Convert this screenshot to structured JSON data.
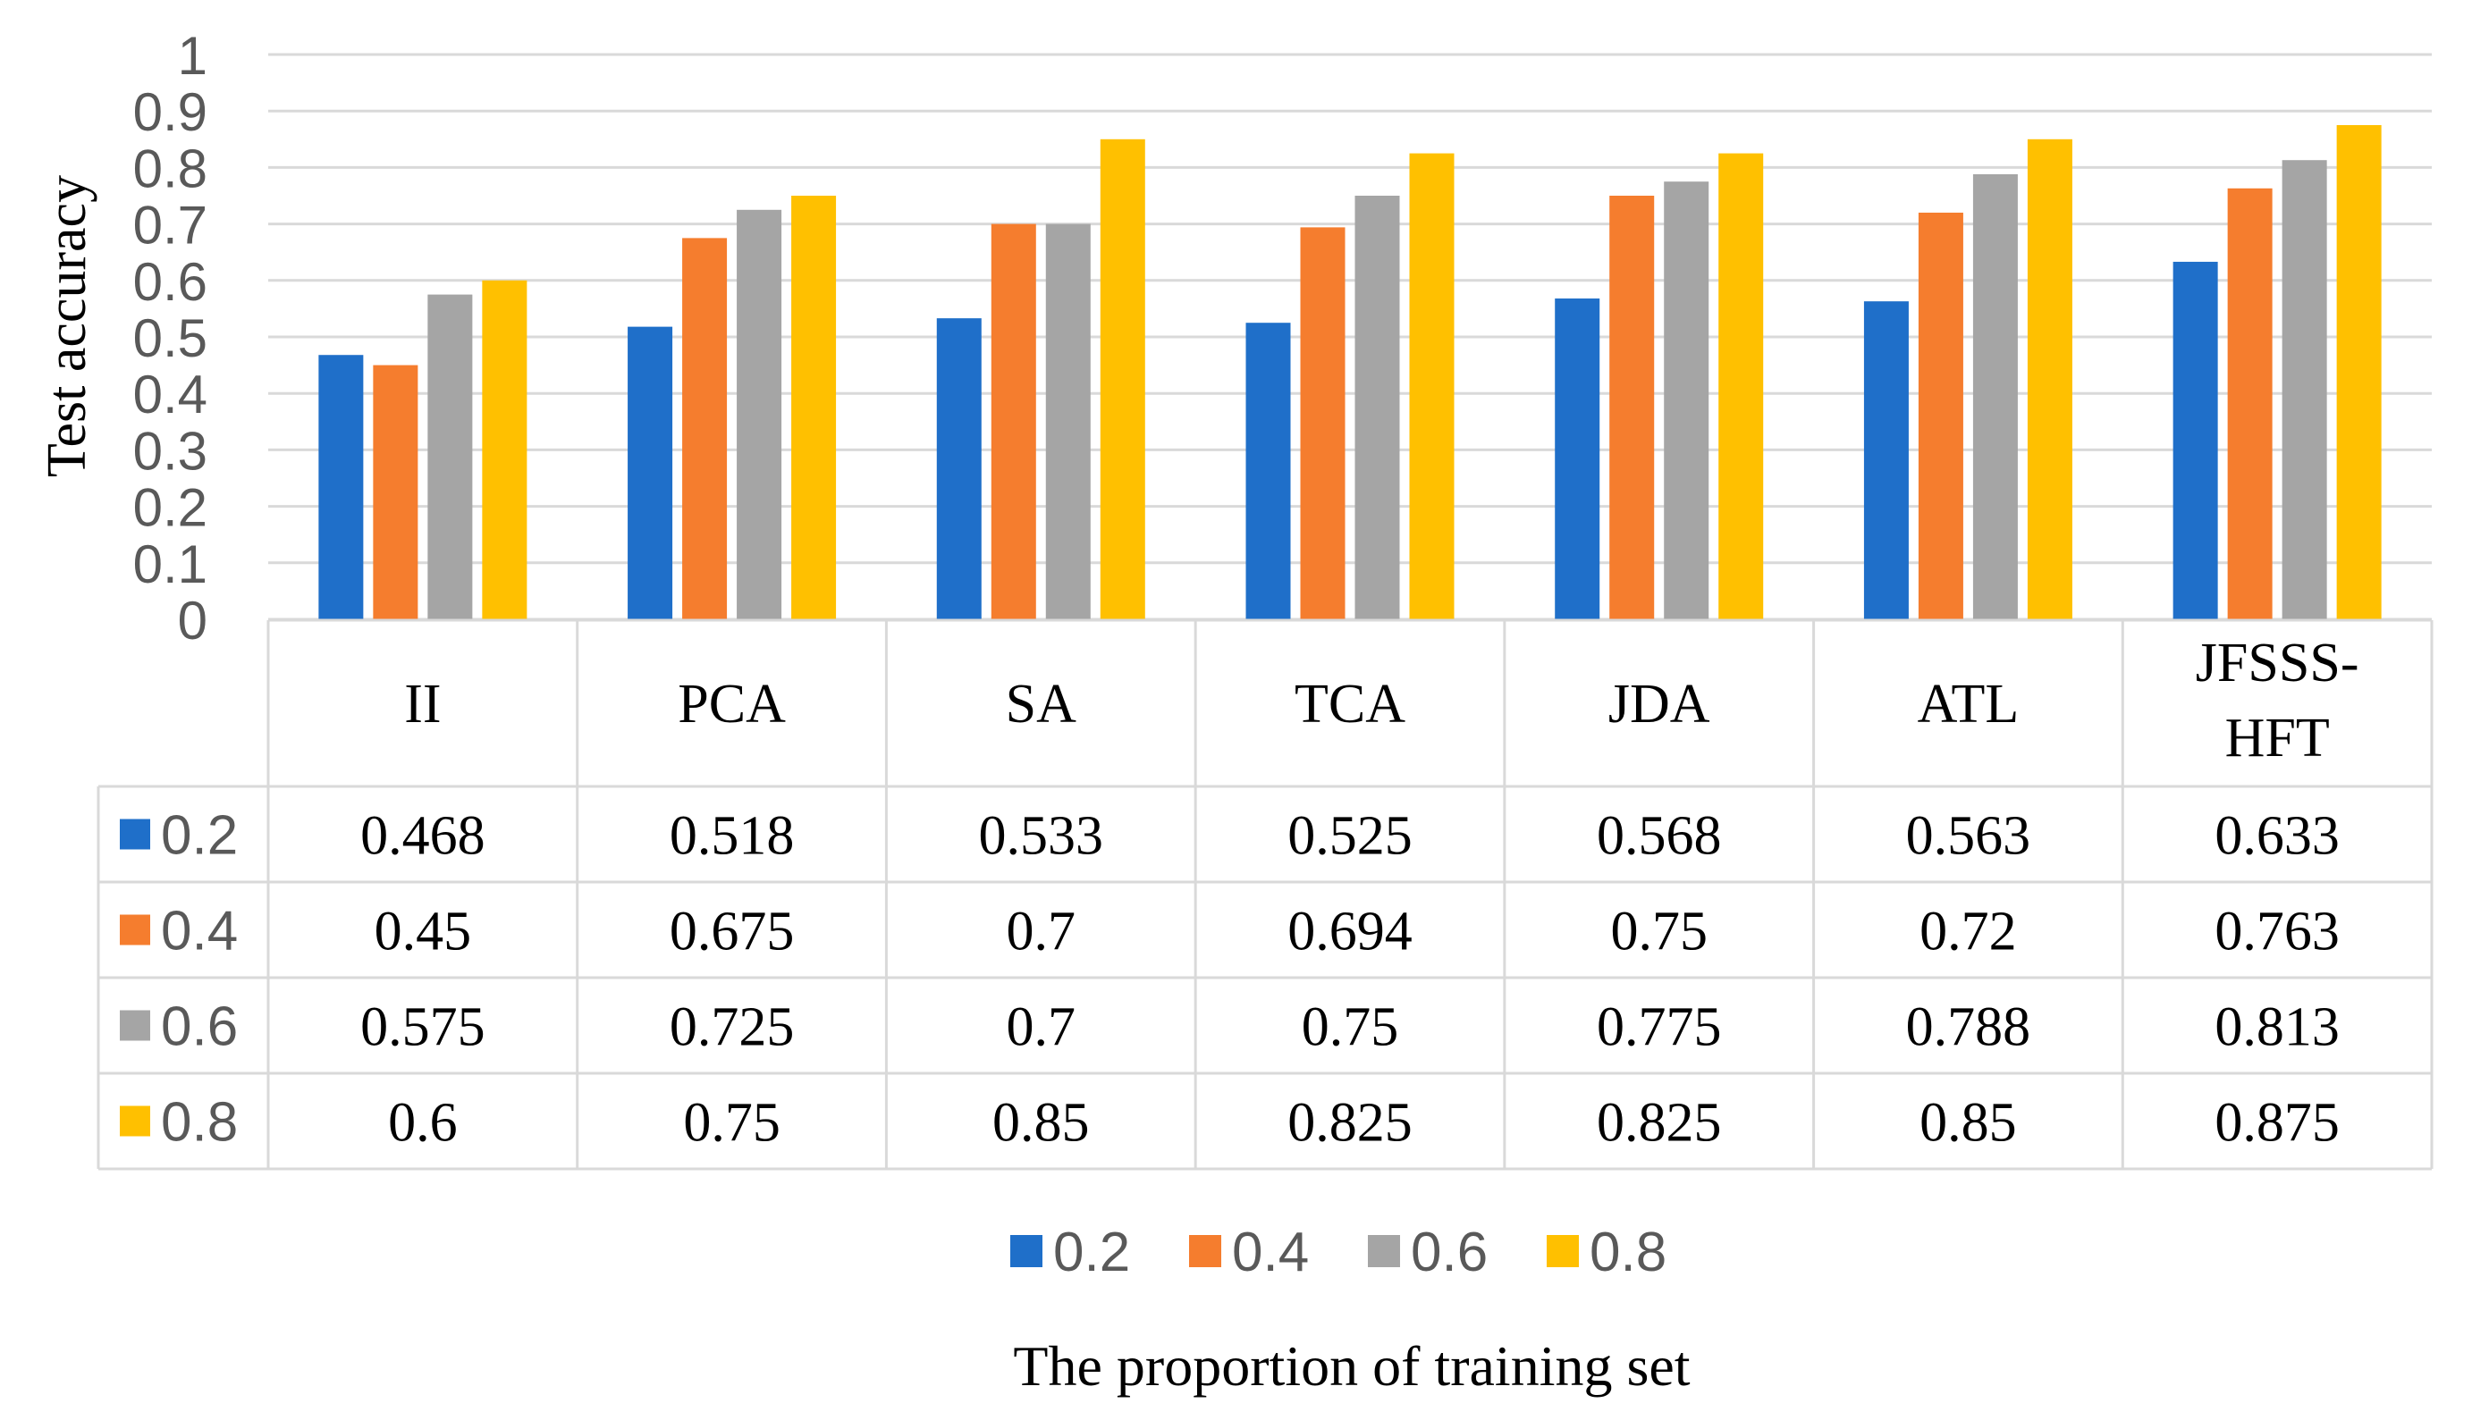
{
  "chart_data": {
    "type": "bar",
    "title": "",
    "xlabel": "The proportion of training set",
    "ylabel": "Test accuracy",
    "ylim": [
      0,
      1
    ],
    "yticks": [
      "0",
      "0.1",
      "0.2",
      "0.3",
      "0.4",
      "0.5",
      "0.6",
      "0.7",
      "0.8",
      "0.9",
      "1"
    ],
    "grid": true,
    "legend_position": "bottom",
    "data_table": true,
    "categories": [
      "II",
      "PCA",
      "SA",
      "TCA",
      "JDA",
      "ATL",
      "JFSSS-HFT"
    ],
    "series": [
      {
        "name": "0.2",
        "color": "#1F6FC9",
        "values": [
          0.468,
          0.518,
          0.533,
          0.525,
          0.568,
          0.563,
          0.633
        ],
        "labels": [
          "0.468",
          "0.518",
          "0.533",
          "0.525",
          "0.568",
          "0.563",
          "0.633"
        ]
      },
      {
        "name": "0.4",
        "color": "#F57D2E",
        "values": [
          0.45,
          0.675,
          0.7,
          0.694,
          0.75,
          0.72,
          0.763
        ],
        "labels": [
          "0.45",
          "0.675",
          "0.7",
          "0.694",
          "0.75",
          "0.72",
          "0.763"
        ]
      },
      {
        "name": "0.6",
        "color": "#A5A5A5",
        "values": [
          0.575,
          0.725,
          0.7,
          0.75,
          0.775,
          0.788,
          0.813
        ],
        "labels": [
          "0.575",
          "0.725",
          "0.7",
          "0.75",
          "0.775",
          "0.788",
          "0.813"
        ]
      },
      {
        "name": "0.8",
        "color": "#FFC000",
        "values": [
          0.6,
          0.75,
          0.85,
          0.825,
          0.825,
          0.85,
          0.875
        ],
        "labels": [
          "0.6",
          "0.75",
          "0.85",
          "0.825",
          "0.825",
          "0.85",
          "0.875"
        ]
      }
    ]
  }
}
